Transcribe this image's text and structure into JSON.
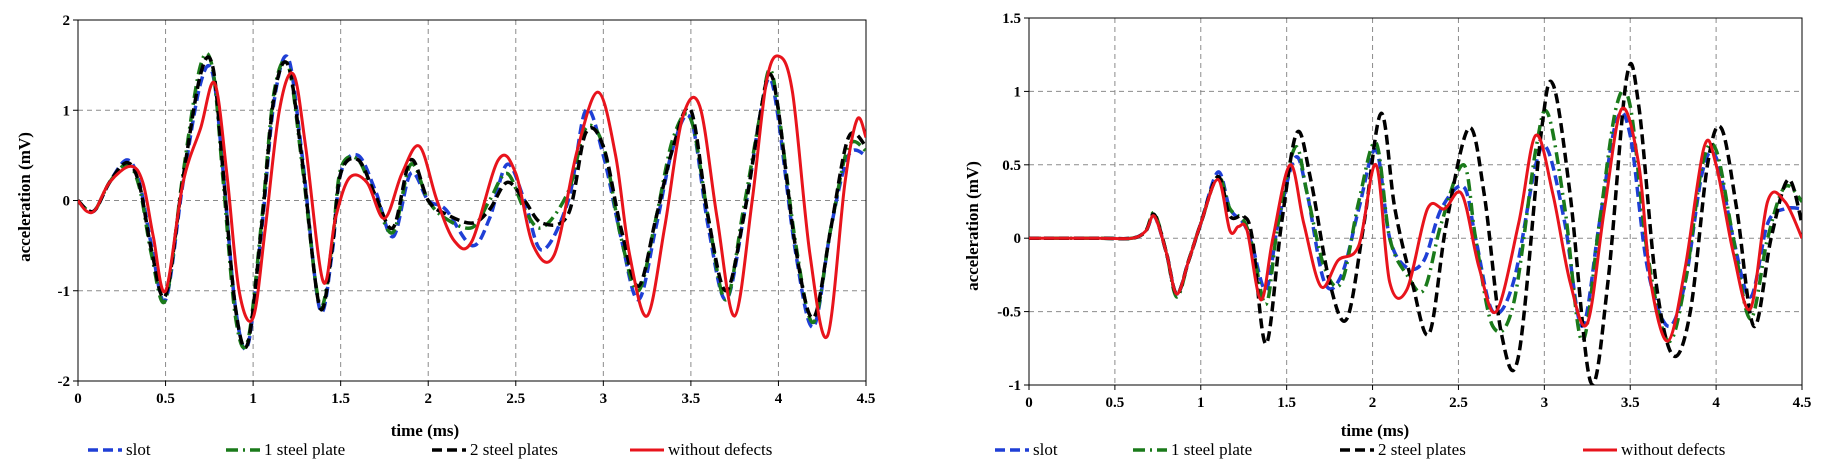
{
  "chart_data": [
    {
      "type": "line",
      "xlabel": "time (ms)",
      "ylabel": "acceleration (mV)",
      "xlim": [
        0,
        4.5
      ],
      "ylim": [
        -2,
        2
      ],
      "xticks": [
        "0",
        "0.5",
        "1",
        "1.5",
        "2",
        "2.5",
        "3",
        "3.5",
        "4",
        "4.5"
      ],
      "yticks": [
        "-2",
        "-1",
        "0",
        "1",
        "2"
      ],
      "grid": true,
      "legend_position": "bottom",
      "series": [
        {
          "name": "slot",
          "color": "#1f3fd6",
          "style": "dashed",
          "x": [
            0,
            0.05,
            0.1,
            0.18,
            0.28,
            0.35,
            0.42,
            0.5,
            0.6,
            0.7,
            0.77,
            0.83,
            0.9,
            0.97,
            1.05,
            1.12,
            1.2,
            1.28,
            1.38,
            1.45,
            1.5,
            1.6,
            1.7,
            1.8,
            1.9,
            2.0,
            2.1,
            2.25,
            2.35,
            2.45,
            2.55,
            2.65,
            2.8,
            2.9,
            3.0,
            3.1,
            3.2,
            3.3,
            3.4,
            3.5,
            3.6,
            3.7,
            3.8,
            3.9,
            3.95,
            4.0,
            4.1,
            4.2,
            4.3,
            4.4,
            4.5
          ],
          "y": [
            0,
            -0.1,
            -0.1,
            0.2,
            0.45,
            0.2,
            -0.5,
            -1.1,
            0.2,
            1.3,
            1.4,
            0.3,
            -1.2,
            -1.6,
            -0.3,
            1.1,
            1.58,
            0.5,
            -1.2,
            -0.6,
            0.3,
            0.5,
            0.1,
            -0.4,
            0.3,
            0.0,
            -0.1,
            -0.5,
            -0.2,
            0.4,
            0.0,
            -0.55,
            0.0,
            1.0,
            0.5,
            -0.4,
            -1.1,
            -0.3,
            0.6,
            0.9,
            -0.3,
            -1.1,
            -0.2,
            1.0,
            1.35,
            0.9,
            -0.6,
            -1.4,
            -0.3,
            0.5,
            0.5
          ]
        },
        {
          "name": "1 steel plate",
          "color": "#1a7a1a",
          "style": "dashdot",
          "x": [
            0,
            0.05,
            0.1,
            0.18,
            0.28,
            0.35,
            0.42,
            0.5,
            0.6,
            0.7,
            0.77,
            0.83,
            0.9,
            0.97,
            1.05,
            1.12,
            1.2,
            1.28,
            1.38,
            1.45,
            1.5,
            1.6,
            1.7,
            1.8,
            1.9,
            2.0,
            2.1,
            2.25,
            2.35,
            2.45,
            2.55,
            2.65,
            2.8,
            2.9,
            3.0,
            3.1,
            3.2,
            3.3,
            3.4,
            3.5,
            3.6,
            3.7,
            3.8,
            3.9,
            3.95,
            4.0,
            4.1,
            4.2,
            4.3,
            4.4,
            4.5
          ],
          "y": [
            0,
            -0.1,
            -0.1,
            0.2,
            0.4,
            0.15,
            -0.6,
            -1.1,
            0.3,
            1.5,
            1.45,
            0.2,
            -1.3,
            -1.55,
            -0.2,
            1.2,
            1.5,
            0.4,
            -1.15,
            -0.5,
            0.35,
            0.45,
            0.0,
            -0.35,
            0.4,
            0.0,
            -0.2,
            -0.3,
            0.0,
            0.3,
            -0.1,
            -0.3,
            0.1,
            0.8,
            0.6,
            -0.4,
            -1.0,
            -0.2,
            0.7,
            0.9,
            -0.2,
            -1.1,
            -0.1,
            1.0,
            1.45,
            1.0,
            -0.5,
            -1.35,
            -0.3,
            0.6,
            0.55
          ]
        },
        {
          "name": "2 steel plates",
          "color": "#000000",
          "style": "dashed",
          "x": [
            0,
            0.05,
            0.1,
            0.18,
            0.28,
            0.35,
            0.42,
            0.5,
            0.6,
            0.7,
            0.77,
            0.83,
            0.9,
            0.97,
            1.05,
            1.12,
            1.2,
            1.28,
            1.38,
            1.45,
            1.5,
            1.6,
            1.7,
            1.8,
            1.9,
            2.0,
            2.1,
            2.25,
            2.35,
            2.45,
            2.55,
            2.65,
            2.8,
            2.9,
            3.0,
            3.1,
            3.2,
            3.3,
            3.4,
            3.5,
            3.6,
            3.7,
            3.8,
            3.9,
            3.95,
            4.0,
            4.1,
            4.2,
            4.3,
            4.4,
            4.5
          ],
          "y": [
            0,
            -0.1,
            -0.1,
            0.2,
            0.42,
            0.18,
            -0.55,
            -1.05,
            0.25,
            1.4,
            1.48,
            0.3,
            -1.2,
            -1.58,
            -0.25,
            1.15,
            1.5,
            0.45,
            -1.18,
            -0.55,
            0.3,
            0.45,
            0.05,
            -0.3,
            0.45,
            0.0,
            -0.15,
            -0.25,
            -0.1,
            0.2,
            0.0,
            -0.25,
            -0.15,
            0.75,
            0.6,
            -0.3,
            -0.95,
            -0.2,
            0.6,
            1.0,
            -0.2,
            -1.0,
            -0.2,
            1.0,
            1.4,
            1.0,
            -0.55,
            -1.3,
            -0.3,
            0.7,
            0.6
          ]
        },
        {
          "name": "without defects",
          "color": "#e8141c",
          "style": "solid",
          "x": [
            0,
            0.05,
            0.1,
            0.18,
            0.3,
            0.37,
            0.43,
            0.5,
            0.6,
            0.7,
            0.78,
            0.85,
            0.92,
            1.0,
            1.07,
            1.15,
            1.23,
            1.3,
            1.4,
            1.47,
            1.55,
            1.65,
            1.75,
            1.85,
            1.95,
            2.05,
            2.15,
            2.25,
            2.4,
            2.5,
            2.6,
            2.72,
            2.85,
            2.97,
            3.07,
            3.15,
            3.25,
            3.35,
            3.45,
            3.55,
            3.65,
            3.75,
            3.85,
            3.93,
            4.0,
            4.08,
            4.18,
            4.28,
            4.38,
            4.45,
            4.5
          ],
          "y": [
            0,
            -0.12,
            -0.1,
            0.2,
            0.38,
            0.2,
            -0.4,
            -1.0,
            0.2,
            0.8,
            1.3,
            0.3,
            -1.0,
            -1.3,
            -0.3,
            1.0,
            1.4,
            0.6,
            -0.9,
            -0.2,
            0.25,
            0.2,
            -0.2,
            0.3,
            0.6,
            0.0,
            -0.45,
            -0.45,
            0.45,
            0.3,
            -0.5,
            -0.6,
            0.55,
            1.2,
            0.5,
            -0.6,
            -1.28,
            -0.3,
            0.9,
            1.05,
            -0.2,
            -1.28,
            0.0,
            1.3,
            1.6,
            1.2,
            -0.6,
            -1.5,
            0.2,
            0.9,
            0.7
          ]
        }
      ]
    },
    {
      "type": "line",
      "xlabel": "time (ms)",
      "ylabel": "acceleration (mV)",
      "xlim": [
        0,
        4.5
      ],
      "ylim": [
        -1,
        1.5
      ],
      "xticks": [
        "0",
        "0.5",
        "1",
        "1.5",
        "2",
        "2.5",
        "3",
        "3.5",
        "4",
        "4.5"
      ],
      "yticks": [
        "-1",
        "-0.5",
        "0",
        "0.5",
        "1",
        "1.5"
      ],
      "grid": true,
      "legend_position": "bottom",
      "series": [
        {
          "name": "slot",
          "color": "#1f3fd6",
          "style": "dashed",
          "x": [
            0,
            0.4,
            0.6,
            0.68,
            0.73,
            0.8,
            0.86,
            0.93,
            1.0,
            1.1,
            1.17,
            1.25,
            1.3,
            1.38,
            1.45,
            1.55,
            1.62,
            1.72,
            1.82,
            1.92,
            2.02,
            2.1,
            2.2,
            2.3,
            2.4,
            2.53,
            2.6,
            2.7,
            2.82,
            2.95,
            3.02,
            3.12,
            3.22,
            3.32,
            3.42,
            3.5,
            3.6,
            3.72,
            3.82,
            3.92,
            4.0,
            4.1,
            4.2,
            4.3,
            4.4,
            4.5
          ],
          "y": [
            0,
            0,
            0,
            0.05,
            0.15,
            -0.1,
            -0.38,
            -0.15,
            0.1,
            0.45,
            0.2,
            0.1,
            -0.05,
            -0.35,
            0.1,
            0.55,
            0.3,
            -0.3,
            -0.25,
            0.2,
            0.6,
            0.0,
            -0.2,
            -0.15,
            0.2,
            0.35,
            0.0,
            -0.5,
            -0.3,
            0.5,
            0.6,
            0.1,
            -0.6,
            0.1,
            0.8,
            0.7,
            -0.2,
            -0.6,
            -0.3,
            0.45,
            0.55,
            0.0,
            -0.4,
            0.1,
            0.2,
            0.2
          ]
        },
        {
          "name": "1 steel plate",
          "color": "#1a7a1a",
          "style": "dashdot",
          "x": [
            0,
            0.4,
            0.6,
            0.68,
            0.73,
            0.8,
            0.86,
            0.93,
            1.0,
            1.1,
            1.17,
            1.25,
            1.3,
            1.38,
            1.45,
            1.55,
            1.62,
            1.72,
            1.82,
            1.92,
            2.02,
            2.1,
            2.2,
            2.3,
            2.4,
            2.53,
            2.6,
            2.7,
            2.82,
            2.95,
            3.02,
            3.12,
            3.22,
            3.32,
            3.42,
            3.5,
            3.6,
            3.72,
            3.82,
            3.92,
            4.0,
            4.1,
            4.2,
            4.3,
            4.4,
            4.5
          ],
          "y": [
            0,
            0,
            0,
            0.05,
            0.17,
            -0.1,
            -0.4,
            -0.15,
            0.1,
            0.42,
            0.2,
            0.12,
            -0.05,
            -0.45,
            0.1,
            0.62,
            0.3,
            -0.2,
            -0.3,
            0.25,
            0.65,
            0.0,
            -0.25,
            -0.35,
            0.1,
            0.5,
            0.0,
            -0.6,
            -0.45,
            0.6,
            0.85,
            0.2,
            -0.7,
            0.1,
            0.9,
            0.9,
            -0.1,
            -0.7,
            -0.3,
            0.5,
            0.6,
            0.0,
            -0.55,
            0.0,
            0.35,
            0.25
          ]
        },
        {
          "name": "2 steel plates",
          "color": "#000000",
          "style": "dashed",
          "x": [
            0,
            0.4,
            0.6,
            0.68,
            0.73,
            0.8,
            0.86,
            0.93,
            1.0,
            1.1,
            1.17,
            1.25,
            1.3,
            1.38,
            1.47,
            1.56,
            1.64,
            1.75,
            1.85,
            1.95,
            2.05,
            2.13,
            2.23,
            2.33,
            2.43,
            2.56,
            2.65,
            2.75,
            2.85,
            2.98,
            3.05,
            3.15,
            3.27,
            3.37,
            3.48,
            3.55,
            3.65,
            3.75,
            3.85,
            3.95,
            4.03,
            4.12,
            4.22,
            4.32,
            4.42,
            4.5
          ],
          "y": [
            0,
            0,
            0,
            0.05,
            0.16,
            -0.1,
            -0.38,
            -0.15,
            0.1,
            0.42,
            0.15,
            0.15,
            0.0,
            -0.72,
            0.1,
            0.72,
            0.4,
            -0.3,
            -0.55,
            0.1,
            0.85,
            0.2,
            -0.3,
            -0.65,
            0.1,
            0.75,
            0.3,
            -0.65,
            -0.8,
            0.7,
            1.05,
            0.3,
            -0.98,
            -0.3,
            1.1,
            0.9,
            -0.3,
            -0.8,
            -0.5,
            0.5,
            0.75,
            0.2,
            -0.6,
            0.0,
            0.4,
            0.1
          ]
        },
        {
          "name": "without defects",
          "color": "#e8141c",
          "style": "solid",
          "x": [
            0,
            0.4,
            0.6,
            0.68,
            0.73,
            0.8,
            0.86,
            0.93,
            1.0,
            1.1,
            1.17,
            1.22,
            1.27,
            1.35,
            1.42,
            1.52,
            1.6,
            1.7,
            1.8,
            1.92,
            2.02,
            2.1,
            2.2,
            2.32,
            2.42,
            2.52,
            2.62,
            2.72,
            2.85,
            2.95,
            3.05,
            3.15,
            3.25,
            3.35,
            3.45,
            3.55,
            3.62,
            3.72,
            3.82,
            3.93,
            4.0,
            4.1,
            4.2,
            4.3,
            4.4,
            4.5
          ],
          "y": [
            0,
            0,
            0,
            0.05,
            0.15,
            -0.1,
            -0.38,
            -0.15,
            0.1,
            0.4,
            0.05,
            0.08,
            0.05,
            -0.42,
            0.0,
            0.5,
            0.1,
            -0.33,
            -0.15,
            -0.05,
            0.5,
            -0.3,
            -0.35,
            0.2,
            0.2,
            0.3,
            -0.2,
            -0.5,
            0.1,
            0.7,
            0.3,
            -0.3,
            -0.58,
            0.2,
            0.88,
            0.5,
            -0.3,
            -0.7,
            -0.2,
            0.62,
            0.5,
            -0.1,
            -0.48,
            0.25,
            0.25,
            0.0
          ]
        }
      ]
    }
  ]
}
